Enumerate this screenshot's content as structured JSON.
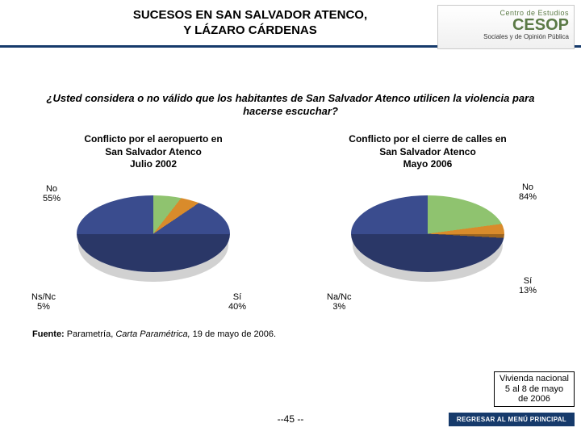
{
  "header": {
    "title_line1": "SUCESOS EN SAN SALVADOR ATENCO,",
    "title_line2": "Y LÁZARO CÁRDENAS",
    "rule_color": "#163a6b",
    "logo": {
      "line1": "Centro de Estudios",
      "line2": "CESOP",
      "line3": "Sociales y de Opinión Pública",
      "accent_color": "#5b7a46"
    }
  },
  "question": "¿Usted considera o no válido que los habitantes de San Salvador Atenco utilicen la violencia para hacerse escuchar?",
  "charts": {
    "left": {
      "title_l1": "Conflicto por el aeropuerto en",
      "title_l2": "San Salvador Atenco",
      "title_l3": "Julio 2002",
      "type": "pie",
      "slices": [
        {
          "label": "No",
          "value": 55,
          "color": "#8fc36f",
          "side_color": "#6a9a4e"
        },
        {
          "label": "Sí",
          "value": 40,
          "color": "#3a4c8e",
          "side_color": "#273460"
        },
        {
          "label": "Ns/Nc",
          "value": 5,
          "color": "#d98b2b",
          "side_color": "#a3661d"
        }
      ],
      "callouts": {
        "no": "No\n55%",
        "si": "Sí\n40%",
        "nsnc": "Ns/Nc\n5%"
      }
    },
    "right": {
      "title_l1": "Conflicto por el cierre de calles en",
      "title_l2": "San Salvador Atenco",
      "title_l3": "Mayo 2006",
      "type": "pie",
      "slices": [
        {
          "label": "No",
          "value": 84,
          "color": "#8fc36f",
          "side_color": "#6a9a4e"
        },
        {
          "label": "Sí",
          "value": 13,
          "color": "#3a4c8e",
          "side_color": "#273460"
        },
        {
          "label": "Na/Nc",
          "value": 3,
          "color": "#d98b2b",
          "side_color": "#a3661d"
        }
      ],
      "callouts": {
        "no": "No\n84%",
        "si": "Sí\n13%",
        "nsnc": "Na/Nc\n3%"
      }
    },
    "label_fontsize": 11
  },
  "source": {
    "label": "Fuente:",
    "text_plain1": " Parametría, ",
    "text_italic": "Carta Paramétrica,",
    "text_plain2": " 19 de mayo de 2006."
  },
  "survey_box": {
    "l1": "Vivienda nacional",
    "l2": "5 al 8 de mayo",
    "l3": "de 2006"
  },
  "page_number": "--45 --",
  "menu_button": "REGRESAR AL MENÚ PRINCIPAL"
}
